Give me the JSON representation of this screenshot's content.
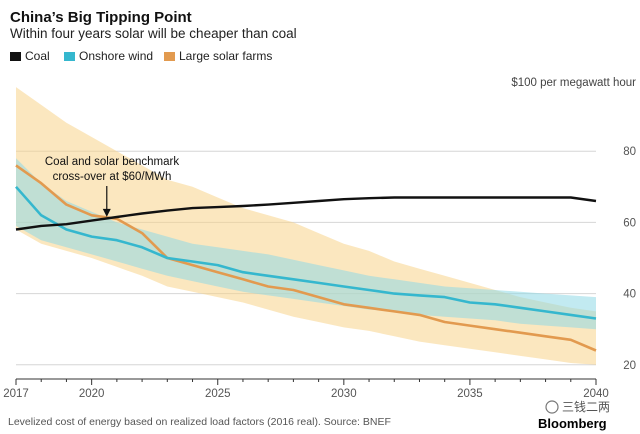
{
  "chart_data": {
    "type": "line",
    "title": "China’s Big Tipping Point",
    "subtitle": "Within four years solar will be cheaper than coal",
    "unit_label": "$100 per megawatt hour",
    "x": [
      2017,
      2018,
      2019,
      2020,
      2021,
      2022,
      2023,
      2024,
      2025,
      2026,
      2027,
      2028,
      2029,
      2030,
      2031,
      2032,
      2033,
      2034,
      2035,
      2036,
      2037,
      2038,
      2039,
      2040
    ],
    "xlim": [
      2017,
      2040
    ],
    "ylim": [
      16,
      100
    ],
    "x_ticks": [
      2017,
      2020,
      2025,
      2030,
      2035,
      2040
    ],
    "y_ticks": [
      20,
      40,
      60,
      80
    ],
    "series": [
      {
        "name": "Coal",
        "color": "#111111",
        "values": [
          58,
          59,
          59.5,
          60.5,
          61.5,
          62.5,
          63.3,
          64,
          64.3,
          64.6,
          65,
          65.5,
          66,
          66.5,
          66.8,
          67,
          67,
          67,
          67,
          67,
          67,
          67,
          67,
          66
        ]
      },
      {
        "name": "Onshore wind",
        "color": "#35b7ce",
        "values": [
          70,
          62,
          58,
          56,
          55,
          53,
          50,
          49,
          48,
          46,
          45,
          44,
          43,
          42,
          41,
          40,
          39.5,
          39,
          37.5,
          37,
          36,
          35,
          34,
          33
        ],
        "band_low": [
          59,
          55,
          53,
          51,
          49,
          47,
          45,
          43.5,
          42,
          40.5,
          39.5,
          38.5,
          37.5,
          36.5,
          35.5,
          35,
          34,
          33.5,
          33,
          32.5,
          31.5,
          31,
          30.5,
          30
        ],
        "band_high": [
          78,
          71,
          66,
          63,
          60,
          58,
          56,
          54,
          53,
          52,
          51,
          49.5,
          48,
          46.5,
          45,
          44,
          43,
          42,
          41.5,
          41,
          40.5,
          40,
          39.5,
          39
        ]
      },
      {
        "name": "Large solar farms",
        "color": "#e29a4f",
        "values": [
          76,
          71,
          65,
          62,
          61,
          57,
          50,
          48,
          46,
          44,
          42,
          41,
          39,
          37,
          36,
          35,
          34,
          32,
          31,
          30,
          29,
          28,
          27,
          24
        ],
        "band_low": [
          58,
          54,
          52,
          50,
          47.5,
          45,
          42,
          40.5,
          39,
          37.5,
          35.5,
          33.5,
          32,
          30.5,
          29.5,
          28,
          26.5,
          25.5,
          24.5,
          23.5,
          22.5,
          21.5,
          20.5,
          20
        ],
        "band_high": [
          98,
          93,
          88,
          84,
          80,
          76,
          72,
          70,
          67,
          64,
          62,
          60,
          57,
          54,
          52,
          49,
          47,
          45,
          43,
          41,
          39,
          37.5,
          36,
          35
        ]
      }
    ],
    "annotation": {
      "line1": "Coal and solar benchmark",
      "line2": "cross-over at $60/MWh",
      "x": 2020.6,
      "y": 61
    },
    "source": "Levelized cost of energy based on realized load factors (2016 real). Source: BNEF",
    "brand": "Bloomberg",
    "watermark": "三钱二两"
  }
}
